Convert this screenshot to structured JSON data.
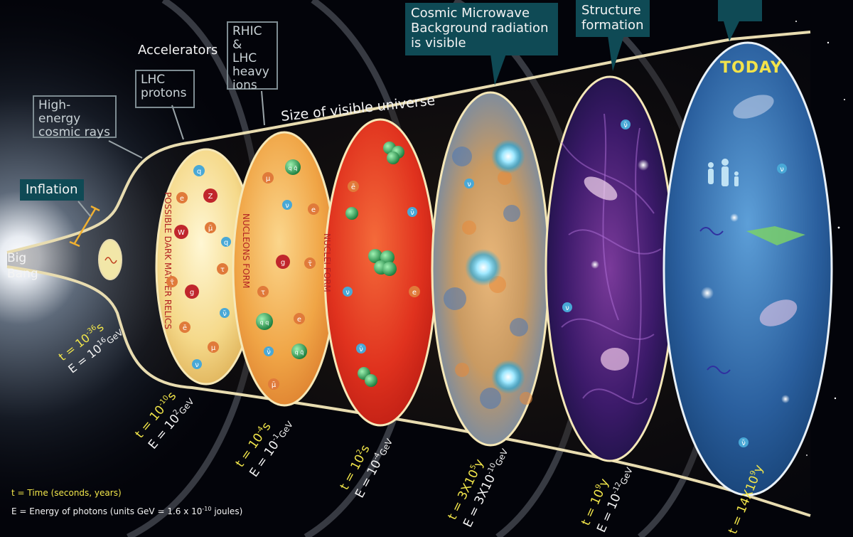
{
  "labels": {
    "big_bang_1": "Big",
    "big_bang_2": "Bang",
    "inflation": "Inflation",
    "high_energy_1": "High-energy",
    "high_energy_2": "cosmic rays",
    "accelerators": "Accelerators",
    "lhc_1": "LHC",
    "lhc_2": "protons",
    "rhic_1": "RHIC &",
    "rhic_2": "LHC",
    "rhic_3": "heavy",
    "rhic_4": "ions",
    "cmb_1": "Cosmic Microwave",
    "cmb_2": "Background radiation",
    "cmb_3": "is visible",
    "structure_1": "Structure",
    "structure_2": "formation",
    "size_universe": "Size of visible universe",
    "today": "TODAY"
  },
  "eras": [
    {
      "label": "POSSIBLE DARK MATTER RELICS",
      "time_expr": "t = 10",
      "time_sup": "-10",
      "time_unit": "s",
      "energy_expr": "E = 10",
      "energy_sup": "2",
      "energy_unit": "GeV"
    },
    {
      "label": "NUCLEONS FORM",
      "time_expr": "t = 10",
      "time_sup": "-4",
      "time_unit": "s",
      "energy_expr": "E = 10",
      "energy_sup": "-1",
      "energy_unit": "GeV"
    },
    {
      "label": "NUCLEI FORM",
      "time_expr": "t = 10",
      "time_sup": "2",
      "time_unit": "s",
      "energy_expr": "E = 10",
      "energy_sup": "-4",
      "energy_unit": "GeV"
    },
    {
      "label": "",
      "time_expr": "t = 3X10",
      "time_sup": "5",
      "time_unit": "y",
      "energy_expr": "E = 3X10",
      "energy_sup": "-10",
      "energy_unit": "GeV"
    },
    {
      "label": "",
      "time_expr": "t = 10",
      "time_sup": "9",
      "time_unit": "y",
      "energy_expr": "E = 10",
      "energy_sup": "-12",
      "energy_unit": "GeV"
    },
    {
      "label": "",
      "time_expr": "t = 14X10",
      "time_sup": "9",
      "time_unit": "y",
      "energy_expr": "",
      "energy_sup": "",
      "energy_unit": ""
    }
  ],
  "bigbang_time": {
    "time_expr": "t = 10",
    "time_sup": "-36",
    "time_unit": "s",
    "energy_expr": "E = 10",
    "energy_sup": "16",
    "energy_unit": "GeV"
  },
  "particles": {
    "q": "q",
    "e": "e",
    "z": "Z",
    "w": "W",
    "g": "g",
    "mu": "μ",
    "tau": "τ",
    "nu": "ν",
    "ebar": "ē",
    "qbar": "q̄",
    "mubar": "μ̄",
    "nubar": "ν̄",
    "taubar": "τ̄",
    "qq": "q q",
    "qqbar": "q q̄"
  },
  "legend": {
    "time_key": "t = ",
    "time_desc": "Time (seconds, years)",
    "energy_key": "E = ",
    "energy_desc_pre": "Energy of photons (units GeV = 1.6 x 10",
    "energy_sup": "-10",
    "energy_desc_post": " joules)"
  },
  "colors": {
    "background": "#03040a",
    "accent_yellow": "#f2e64a",
    "callout_teal": "#0f4a55",
    "callout_grey": "#7e8c92",
    "funnel_outline": "#e8dcb0",
    "nucleon_green": "#27a55a",
    "red_particle": "#c0262c",
    "blue_particle": "#49a8d6"
  }
}
